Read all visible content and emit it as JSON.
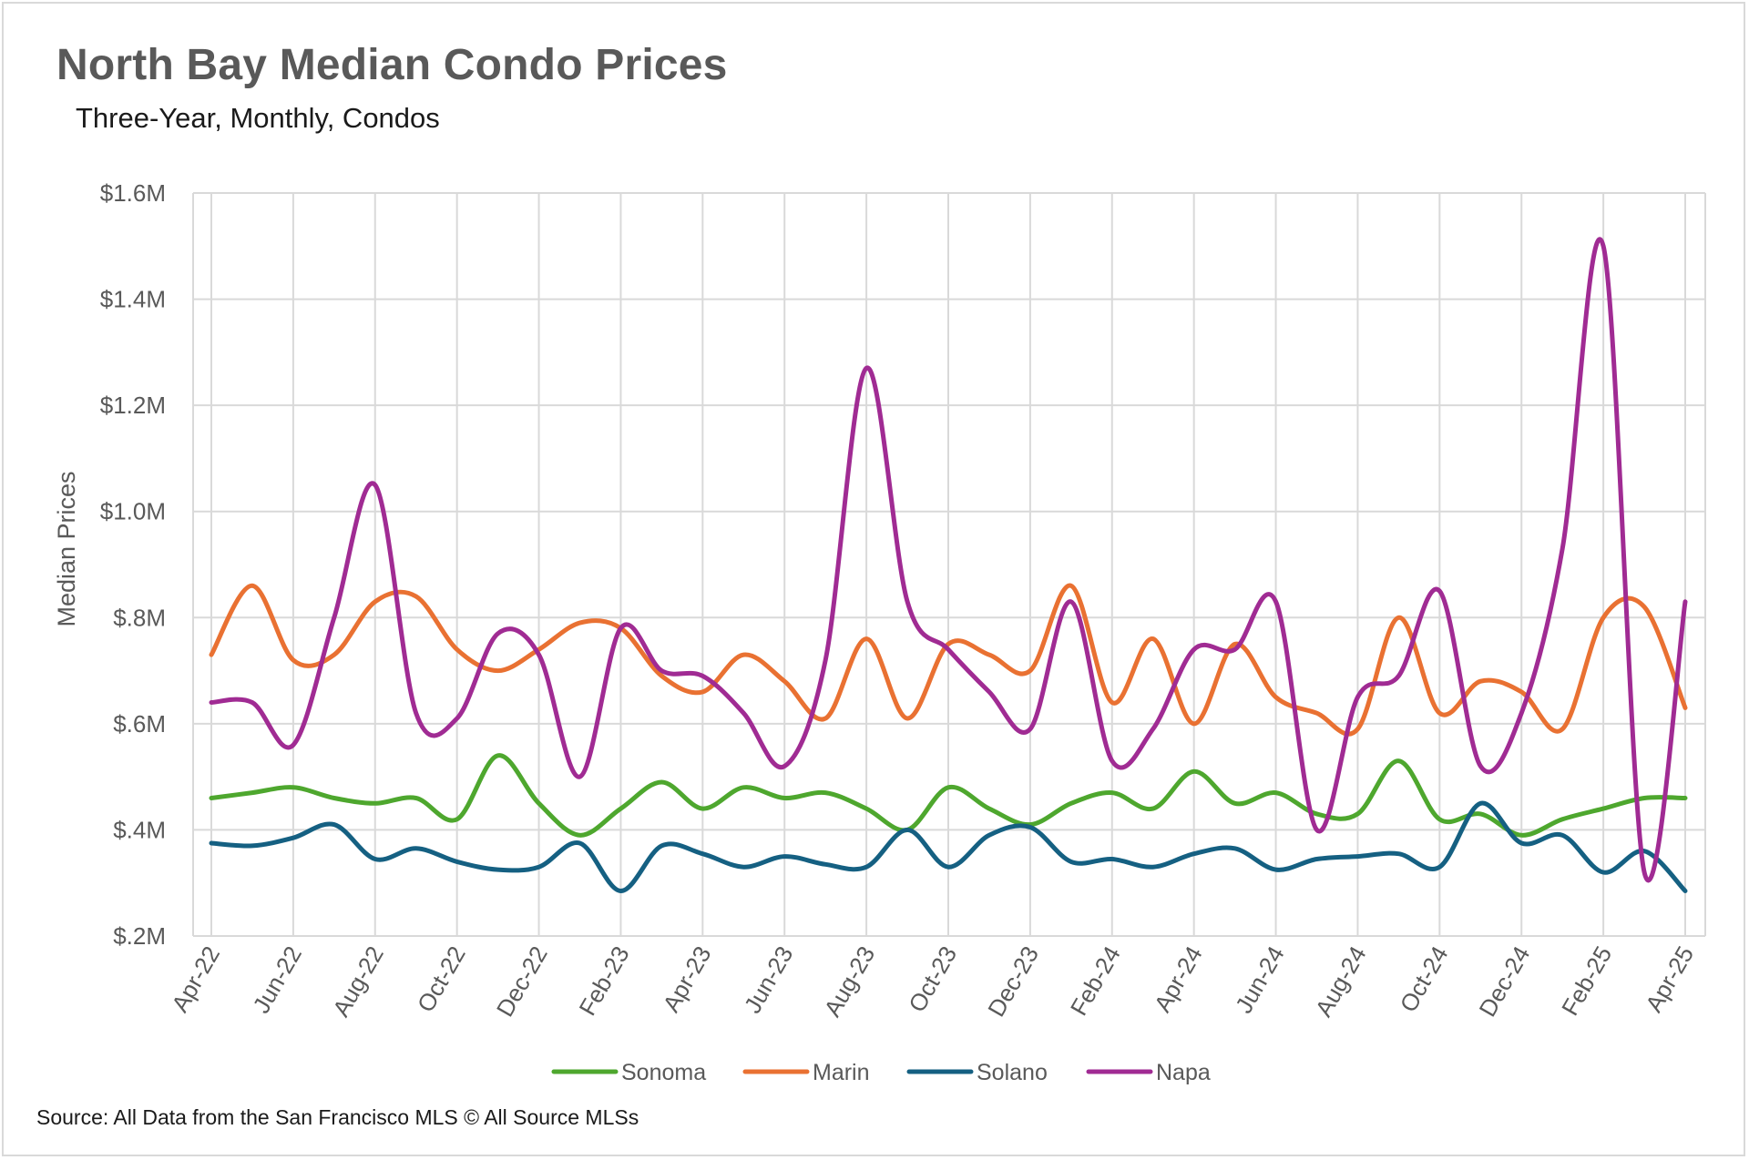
{
  "title": "North Bay Median Condo Prices",
  "subtitle": "Three-Year, Monthly, Condos",
  "source": "Source: All Data from the San Francisco MLS © All Source MLSs",
  "chart_data": {
    "type": "line",
    "title": "North Bay Median Condo Prices",
    "subtitle": "Three-Year, Monthly, Condos",
    "xlabel": "",
    "ylabel": "Median Prices",
    "ylim": [
      200000,
      1600000
    ],
    "yticks": [
      {
        "value": 200000,
        "label": "$.2M"
      },
      {
        "value": 400000,
        "label": "$.4M"
      },
      {
        "value": 600000,
        "label": "$.6M"
      },
      {
        "value": 800000,
        "label": "$.8M"
      },
      {
        "value": 1000000,
        "label": "$1.0M"
      },
      {
        "value": 1200000,
        "label": "$1.2M"
      },
      {
        "value": 1400000,
        "label": "$1.4M"
      },
      {
        "value": 1600000,
        "label": "$1.6M"
      }
    ],
    "x": [
      "Apr-22",
      "May-22",
      "Jun-22",
      "Jul-22",
      "Aug-22",
      "Sep-22",
      "Oct-22",
      "Nov-22",
      "Dec-22",
      "Jan-23",
      "Feb-23",
      "Mar-23",
      "Apr-23",
      "May-23",
      "Jun-23",
      "Jul-23",
      "Aug-23",
      "Sep-23",
      "Oct-23",
      "Nov-23",
      "Dec-23",
      "Jan-24",
      "Feb-24",
      "Mar-24",
      "Apr-24",
      "May-24",
      "Jun-24",
      "Jul-24",
      "Aug-24",
      "Sep-24",
      "Oct-24",
      "Nov-24",
      "Dec-24",
      "Jan-25",
      "Feb-25",
      "Mar-25",
      "Apr-25"
    ],
    "x_tick_labels": [
      "Apr-22",
      "Jun-22",
      "Aug-22",
      "Oct-22",
      "Dec-22",
      "Feb-23",
      "Apr-23",
      "Jun-23",
      "Aug-23",
      "Oct-23",
      "Dec-23",
      "Feb-24",
      "Apr-24",
      "Jun-24",
      "Aug-24",
      "Oct-24",
      "Dec-24",
      "Feb-25",
      "Apr-25"
    ],
    "legend_position": "bottom",
    "grid": true,
    "series": [
      {
        "name": "Sonoma",
        "color": "#4ea72e",
        "values": [
          460000,
          470000,
          480000,
          460000,
          450000,
          460000,
          420000,
          540000,
          450000,
          390000,
          440000,
          490000,
          440000,
          480000,
          460000,
          470000,
          440000,
          400000,
          480000,
          440000,
          410000,
          450000,
          470000,
          440000,
          510000,
          450000,
          470000,
          430000,
          430000,
          530000,
          420000,
          430000,
          390000,
          420000,
          440000,
          460000,
          460000
        ]
      },
      {
        "name": "Marin",
        "color": "#e97132",
        "values": [
          730000,
          860000,
          720000,
          730000,
          830000,
          840000,
          740000,
          700000,
          740000,
          790000,
          780000,
          690000,
          660000,
          730000,
          680000,
          610000,
          760000,
          610000,
          750000,
          730000,
          700000,
          860000,
          640000,
          760000,
          600000,
          750000,
          650000,
          620000,
          590000,
          800000,
          620000,
          680000,
          660000,
          590000,
          800000,
          820000,
          630000
        ]
      },
      {
        "name": "Solano",
        "color": "#156082",
        "values": [
          375000,
          370000,
          385000,
          410000,
          345000,
          365000,
          340000,
          325000,
          330000,
          375000,
          285000,
          370000,
          355000,
          330000,
          350000,
          335000,
          330000,
          400000,
          330000,
          390000,
          405000,
          340000,
          345000,
          330000,
          355000,
          365000,
          325000,
          345000,
          350000,
          355000,
          330000,
          450000,
          375000,
          390000,
          320000,
          360000,
          285000
        ]
      },
      {
        "name": "Napa",
        "color": "#a02b93",
        "values": [
          640000,
          640000,
          560000,
          800000,
          1050000,
          620000,
          610000,
          770000,
          730000,
          500000,
          780000,
          700000,
          690000,
          620000,
          520000,
          720000,
          1270000,
          830000,
          740000,
          660000,
          590000,
          830000,
          530000,
          590000,
          740000,
          740000,
          830000,
          400000,
          650000,
          690000,
          850000,
          520000,
          620000,
          930000,
          1500000,
          320000,
          830000
        ]
      }
    ]
  }
}
